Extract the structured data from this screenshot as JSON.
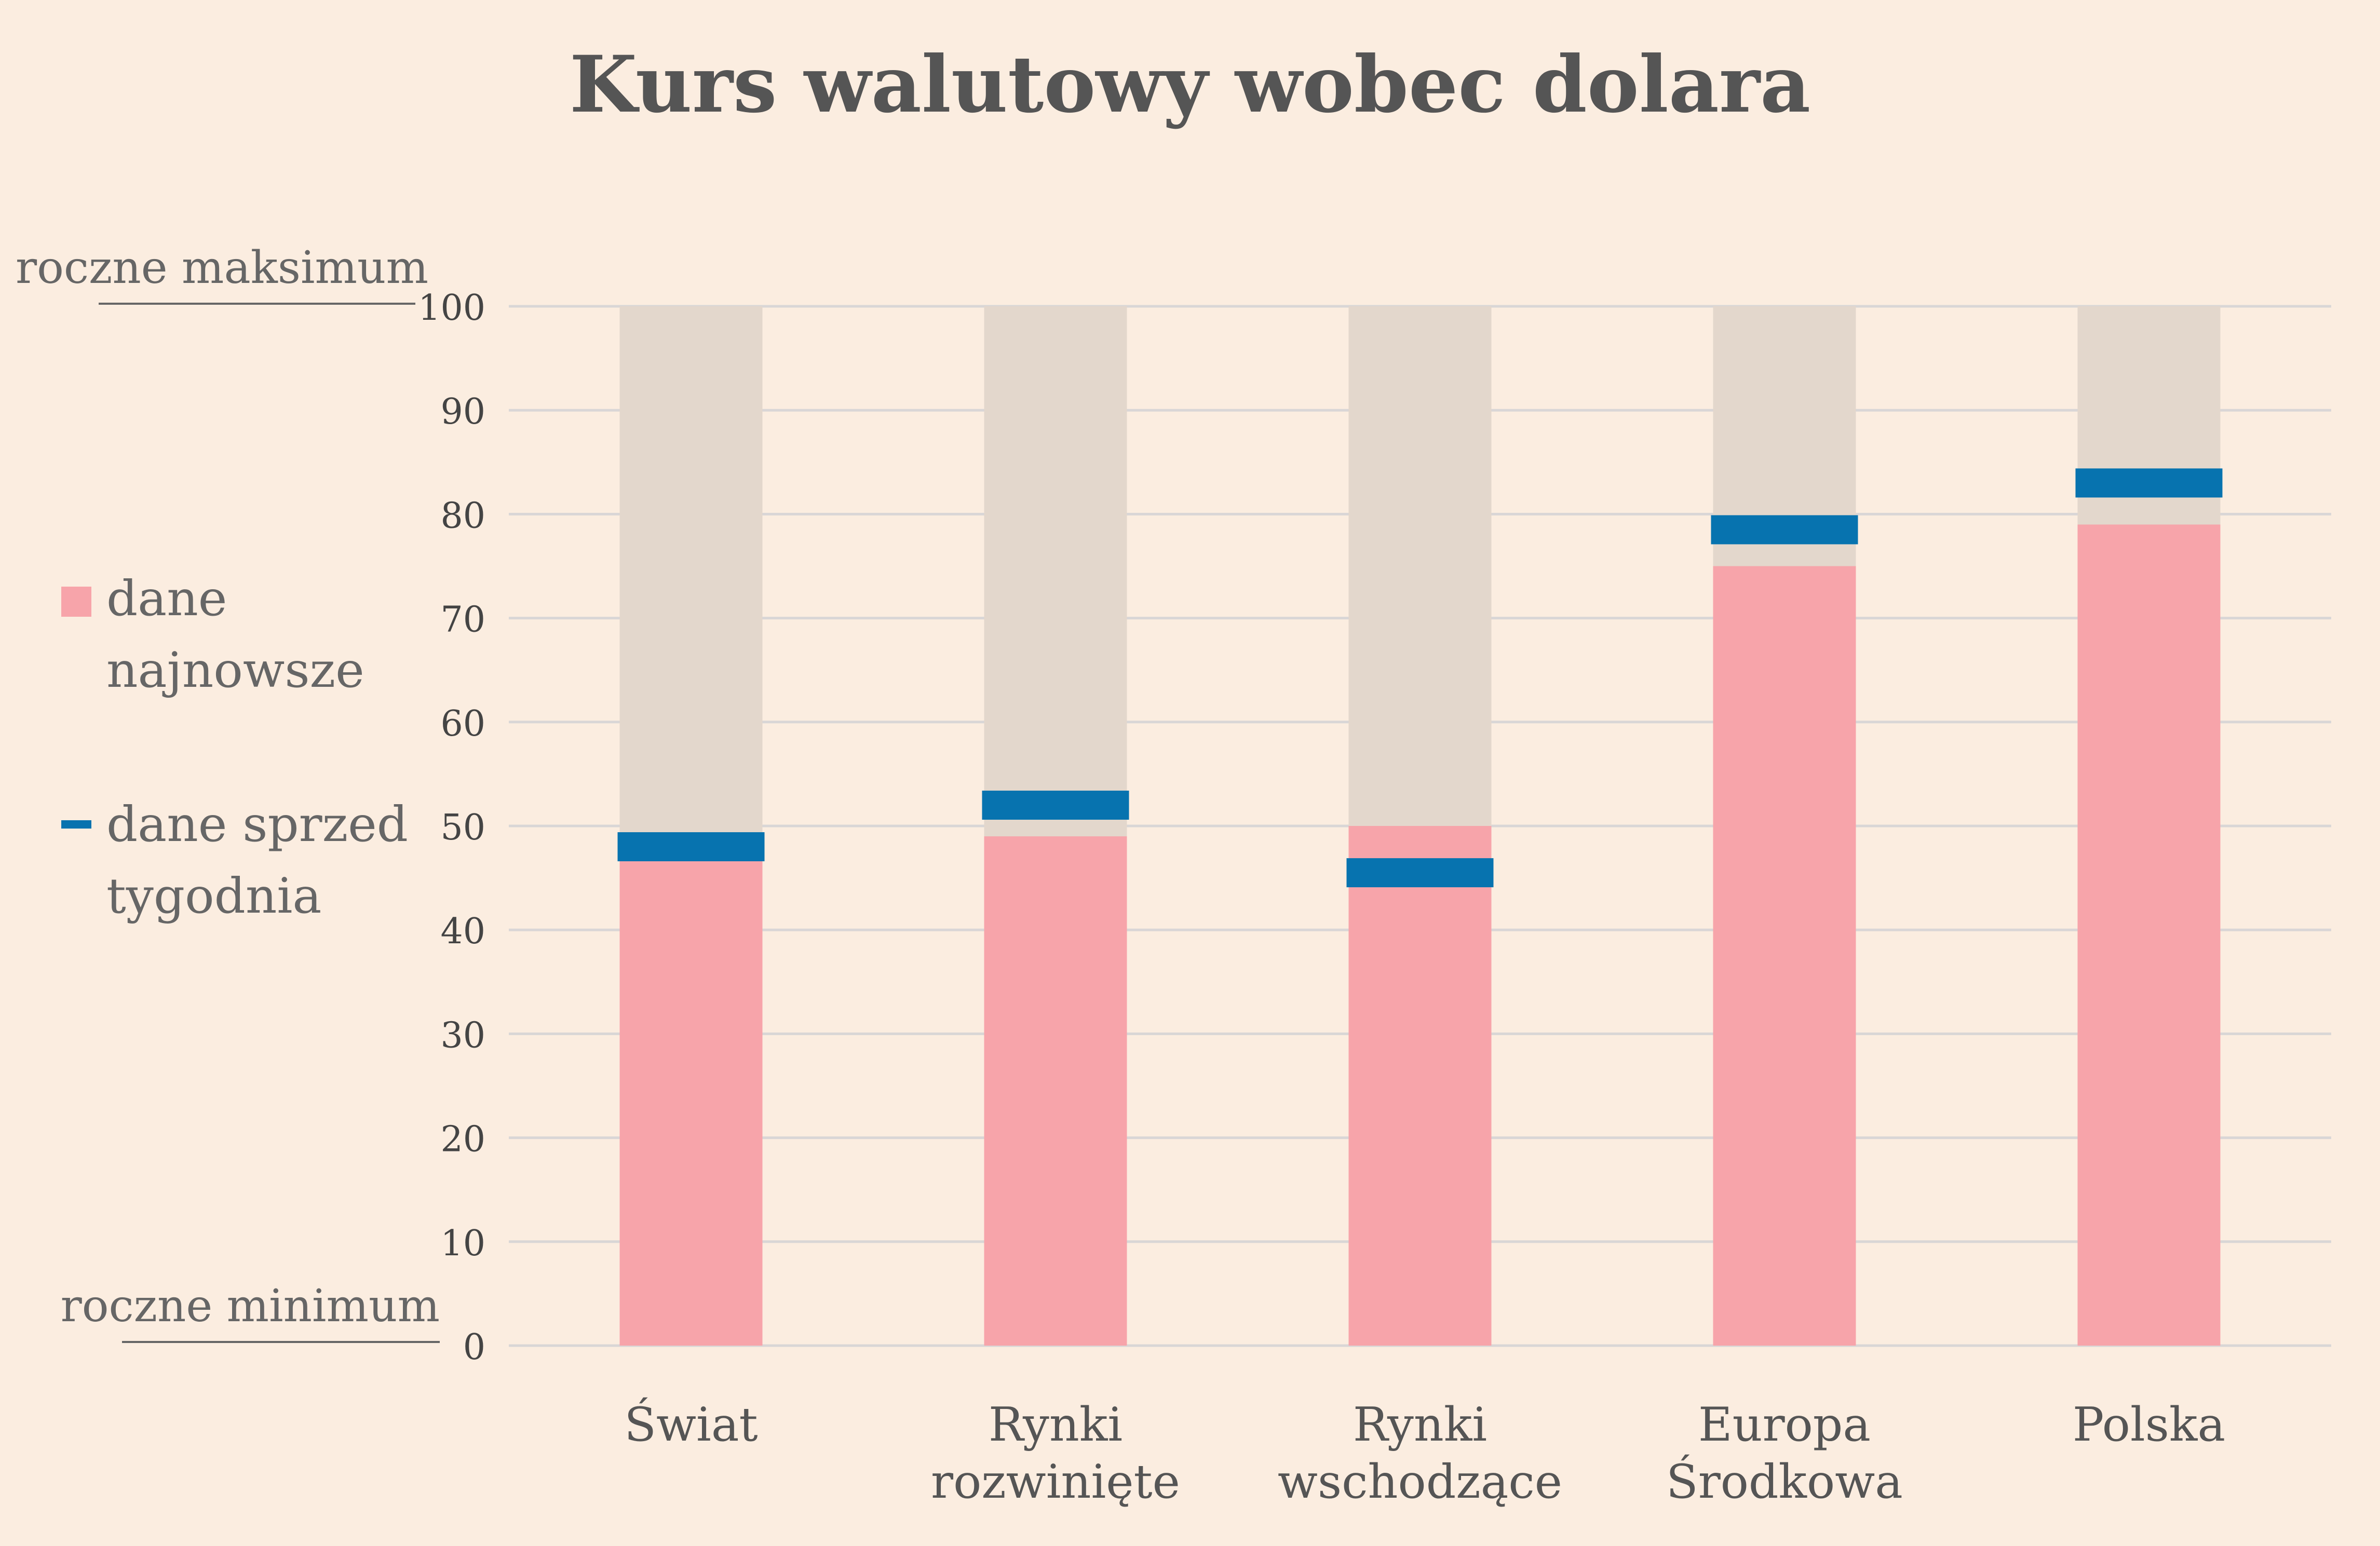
{
  "chart_data": {
    "type": "bar",
    "title": "Kurs walutowy wobec dolara",
    "ylim": [
      0,
      100
    ],
    "yticks": [
      0,
      10,
      20,
      30,
      40,
      50,
      60,
      70,
      80,
      90,
      100
    ],
    "y_top_note": "roczne maksimum",
    "y_bottom_note": "roczne minimum",
    "grid": true,
    "legend_placement": "left",
    "categories": [
      [
        "Świat"
      ],
      [
        "Rynki",
        "rozwinięte"
      ],
      [
        "Rynki",
        "wschodzące"
      ],
      [
        "Europa",
        "Środkowa"
      ],
      [
        "Polska"
      ]
    ],
    "series": [
      {
        "name": [
          "dane",
          "najnowsze"
        ],
        "marker": "square",
        "color": "#f7a4aa",
        "values": [
          47,
          49,
          50,
          75,
          79
        ]
      },
      {
        "name": [
          "dane sprzed",
          "tygodnia"
        ],
        "marker": "dash",
        "color": "#0773af",
        "values": [
          48,
          52,
          45.5,
          78.5,
          83
        ]
      }
    ],
    "range_color": "#e3d7cc",
    "grid_color": "#d9d6d6"
  }
}
